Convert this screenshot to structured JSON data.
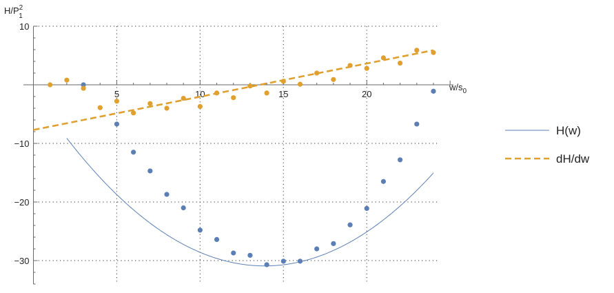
{
  "chart_data": {
    "type": "scatter",
    "title": "",
    "xlabel": {
      "base": "w/s",
      "sub": "0"
    },
    "ylabel": {
      "base": "H/P",
      "sup": "2",
      "sub": "1"
    },
    "xlim": [
      -0.6,
      25.2
    ],
    "ylim": [
      -34,
      10
    ],
    "x_ticks": [
      5,
      10,
      15,
      20
    ],
    "x_tick_labels": [
      "5",
      "10",
      "15",
      "20"
    ],
    "y_ticks": [
      10,
      -10,
      -20,
      -30
    ],
    "y_tick_labels": [
      "10",
      "−10",
      "−20",
      "−30"
    ],
    "grid": "dotted",
    "legend_position": "right",
    "series": [
      {
        "name": "H(w)",
        "kind": "line",
        "style": "solid",
        "color": "#5b7fb5",
        "function": "quadratic",
        "coefficients": {
          "a": 0.15467,
          "b": -4.2908,
          "c": -1.15
        }
      },
      {
        "name": "H(w) points",
        "kind": "points",
        "color": "#5b7fb5",
        "x": [
          3,
          5,
          6,
          7,
          8,
          9,
          10,
          11,
          12,
          13,
          14,
          15,
          16,
          17,
          18,
          19,
          20,
          21,
          22,
          23,
          24
        ],
        "y": [
          0,
          -6.7,
          -11.5,
          -14.7,
          -18.7,
          -21.0,
          -24.8,
          -26.4,
          -28.7,
          -29.1,
          -30.7,
          -30.1,
          -30.1,
          -28.0,
          -27.1,
          -23.9,
          -21.1,
          -16.5,
          -12.8,
          -6.7,
          -1.1
        ]
      },
      {
        "name": "dH/dw",
        "kind": "line",
        "style": "dashed",
        "color": "#e0a030",
        "x": [
          0,
          24
        ],
        "y": [
          -7.7,
          5.9
        ]
      },
      {
        "name": "dH/dw points",
        "kind": "points",
        "color": "#e0a030",
        "x": [
          1,
          2,
          3,
          4,
          5,
          6,
          7,
          8,
          9,
          10,
          11,
          12,
          13,
          14,
          15,
          16,
          17,
          18,
          19,
          20,
          21,
          22,
          23,
          24
        ],
        "y": [
          0,
          0.8,
          -0.6,
          -3.9,
          -2.8,
          -4.8,
          -3.2,
          -4.0,
          -2.3,
          -3.7,
          -1.4,
          -2.2,
          -0.2,
          -1.4,
          0.6,
          0.1,
          2.0,
          0.9,
          3.3,
          2.8,
          4.6,
          3.7,
          5.9,
          5.5
        ]
      }
    ],
    "legend": [
      {
        "label": "H(w)",
        "style": "solid",
        "color": "#5b7fb5"
      },
      {
        "label": "dH/dw",
        "style": "dashed",
        "color": "#e0a030"
      }
    ]
  }
}
